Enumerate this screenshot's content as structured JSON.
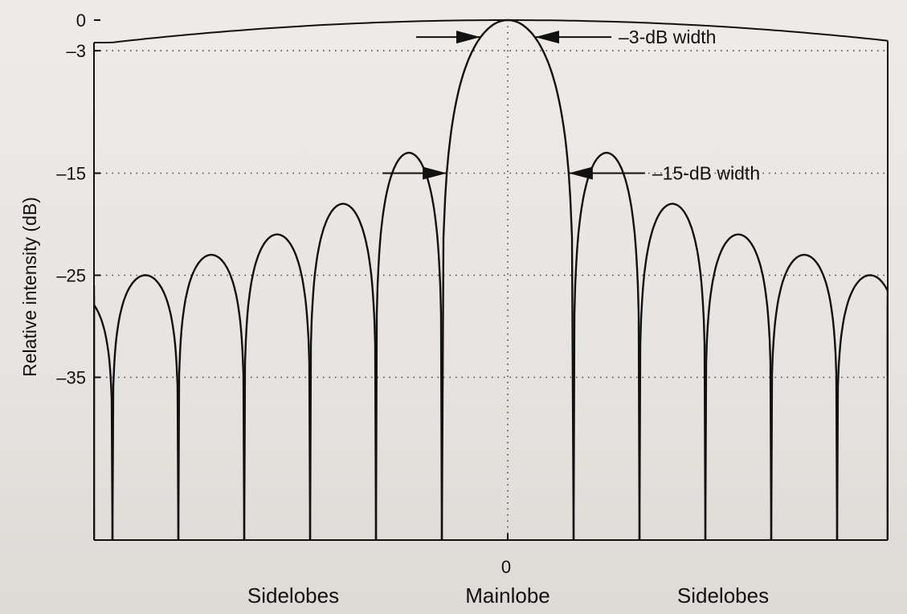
{
  "chart_data": {
    "type": "line",
    "ylabel": "Relative intensity (dB)",
    "y_ticks": [
      0,
      -3,
      -15,
      -25,
      -35
    ],
    "x_ticks": [
      0
    ],
    "grid": "dotted",
    "mainlobe": {
      "peak_x": 0,
      "peak_db": 0
    },
    "sidelobe_peaks_db": [
      -13,
      -18,
      -21,
      -23,
      -25,
      -27
    ],
    "sidelobe_positions": [
      1.5,
      2.5,
      3.5,
      4.5,
      5.5,
      6.5
    ],
    "zeros_at": [
      1,
      2,
      3,
      4,
      5,
      6
    ],
    "x_range": [
      -6.2,
      6.05
    ],
    "y_floor": "-inf",
    "annotations": [
      {
        "label": "–3-dB width",
        "level_db": -3
      },
      {
        "label": "–15-dB width",
        "level_db": -15
      }
    ],
    "region_labels": {
      "left": "Sidelobes",
      "center": "Mainlobe",
      "right": "Sidelobes"
    }
  }
}
